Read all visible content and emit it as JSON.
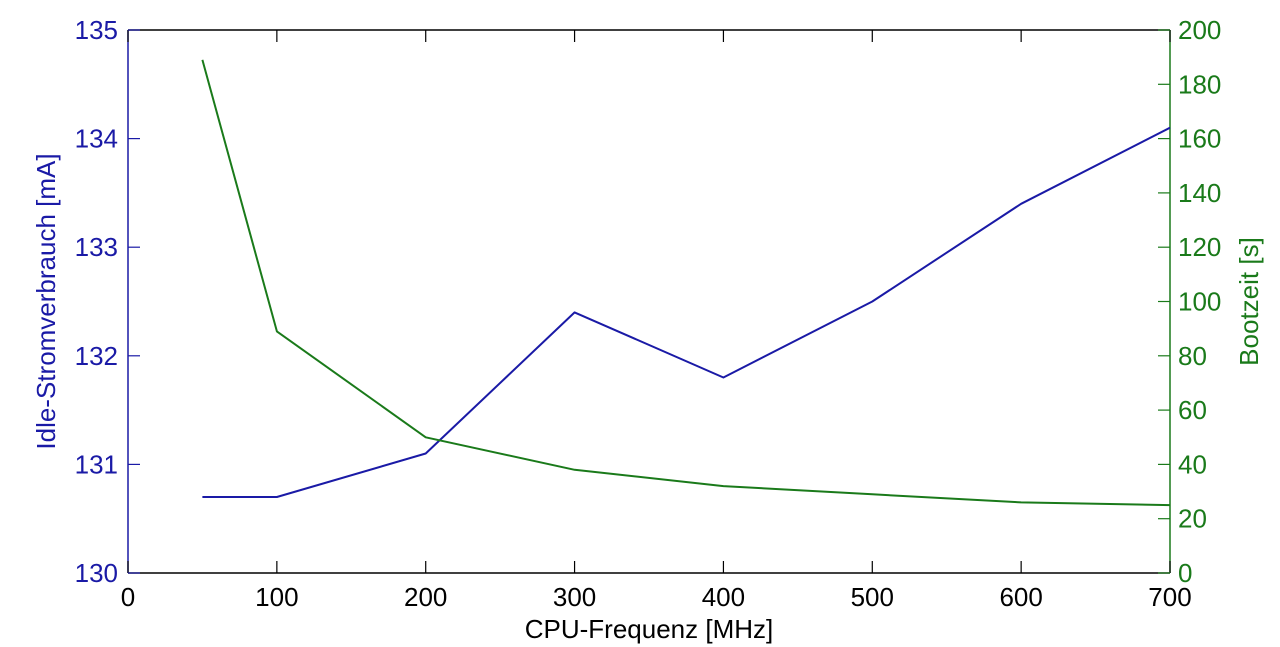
{
  "chart_data": {
    "type": "line",
    "title": "",
    "xlabel": "CPU-Frequenz [MHz]",
    "ylabel_left": "Idle-Stromverbrauch [mA]",
    "ylabel_right": "Bootzeit [s]",
    "xlim": [
      0,
      700
    ],
    "ylim_left": [
      130,
      135
    ],
    "ylim_right": [
      0,
      200
    ],
    "x_ticks": [
      "0",
      "100",
      "200",
      "300",
      "400",
      "500",
      "600",
      "700"
    ],
    "y_left_ticks": [
      "130",
      "131",
      "132",
      "133",
      "134",
      "135"
    ],
    "y_right_ticks": [
      "0",
      "20",
      "40",
      "60",
      "80",
      "100",
      "120",
      "140",
      "160",
      "180",
      "200"
    ],
    "grid": false,
    "legend": "none",
    "colors": {
      "left": "#1a1aa6",
      "right": "#1a7a1a",
      "axis": "#000000"
    },
    "series": [
      {
        "axis": "left",
        "color": "#1a1aa6",
        "x": [
          50,
          100,
          200,
          300,
          400,
          500,
          600,
          700
        ],
        "values": [
          130.7,
          130.7,
          131.1,
          132.4,
          131.8,
          132.5,
          133.4,
          134.1
        ]
      },
      {
        "axis": "right",
        "color": "#1a7a1a",
        "x": [
          50,
          100,
          200,
          300,
          400,
          500,
          600,
          700
        ],
        "values": [
          189,
          89,
          50,
          38,
          32,
          29,
          26,
          25
        ]
      }
    ]
  }
}
